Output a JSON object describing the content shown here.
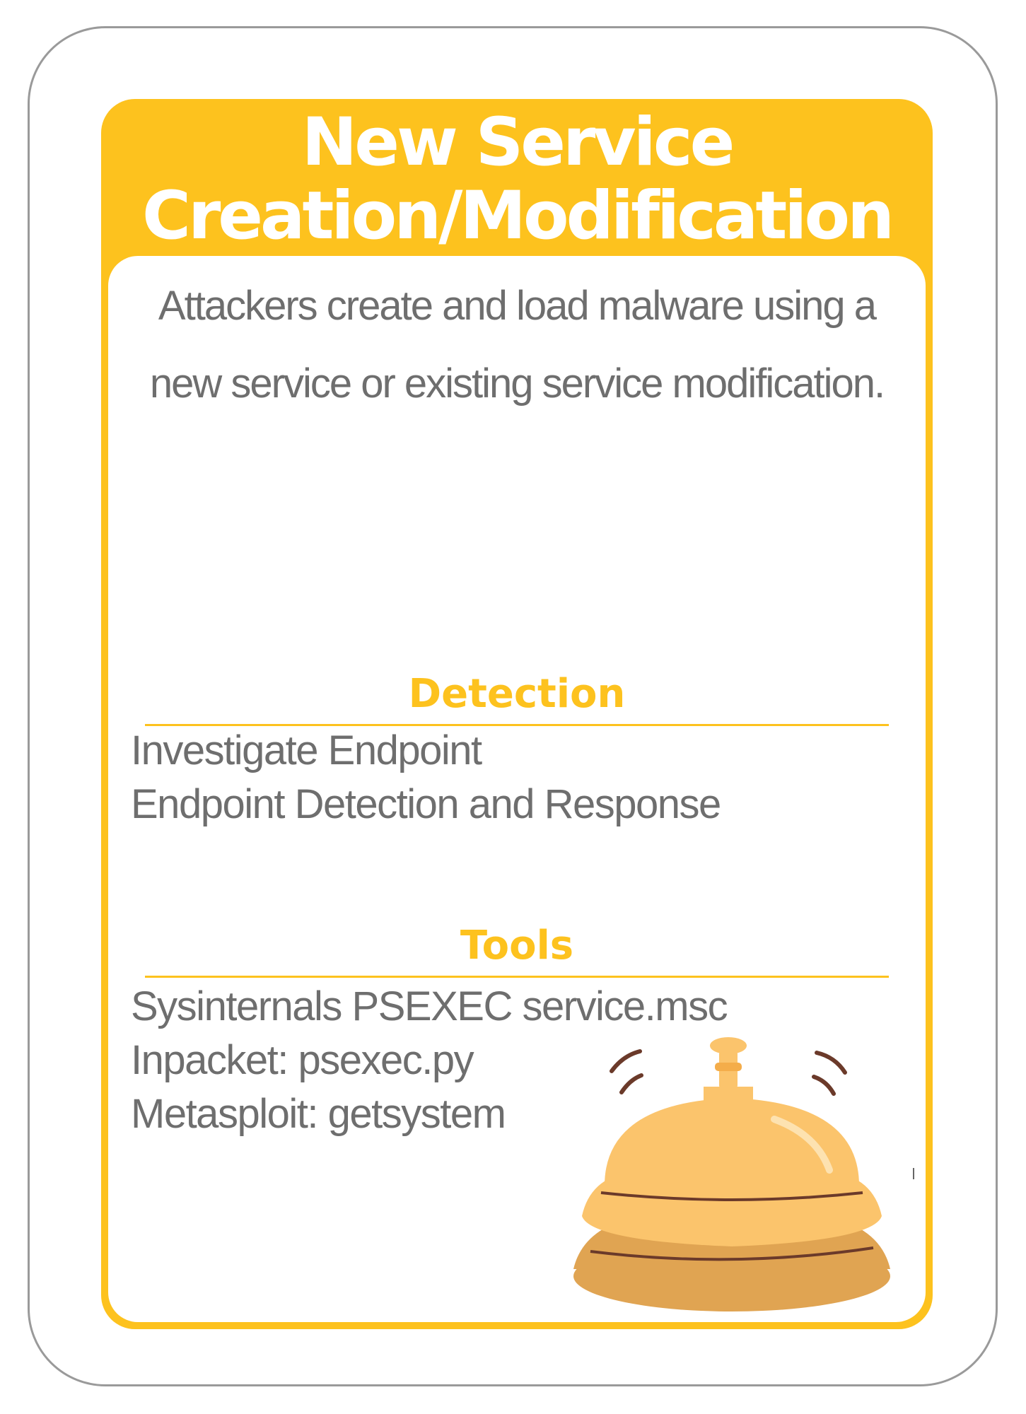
{
  "card": {
    "title_line1": "New Service",
    "title_line2": "Creation/Modification",
    "description": "Attackers create and load malware using a new service or existing service modification.",
    "detection": {
      "heading": "Detection",
      "items": [
        "Investigate Endpoint",
        "Endpoint Detection and Response"
      ]
    },
    "tools": {
      "heading": "Tools",
      "items": [
        "Sysinternals PSEXEC service.msc",
        "Inpacket: psexec.py",
        "Metasploit: getsystem"
      ]
    },
    "illustration": "service-bell-icon"
  },
  "colors": {
    "accent": "#fdc21e",
    "text": "#6e6e6e",
    "bell_body": "#fbc46c",
    "bell_base": "#e0a452",
    "bell_line": "#6b3a2a"
  }
}
